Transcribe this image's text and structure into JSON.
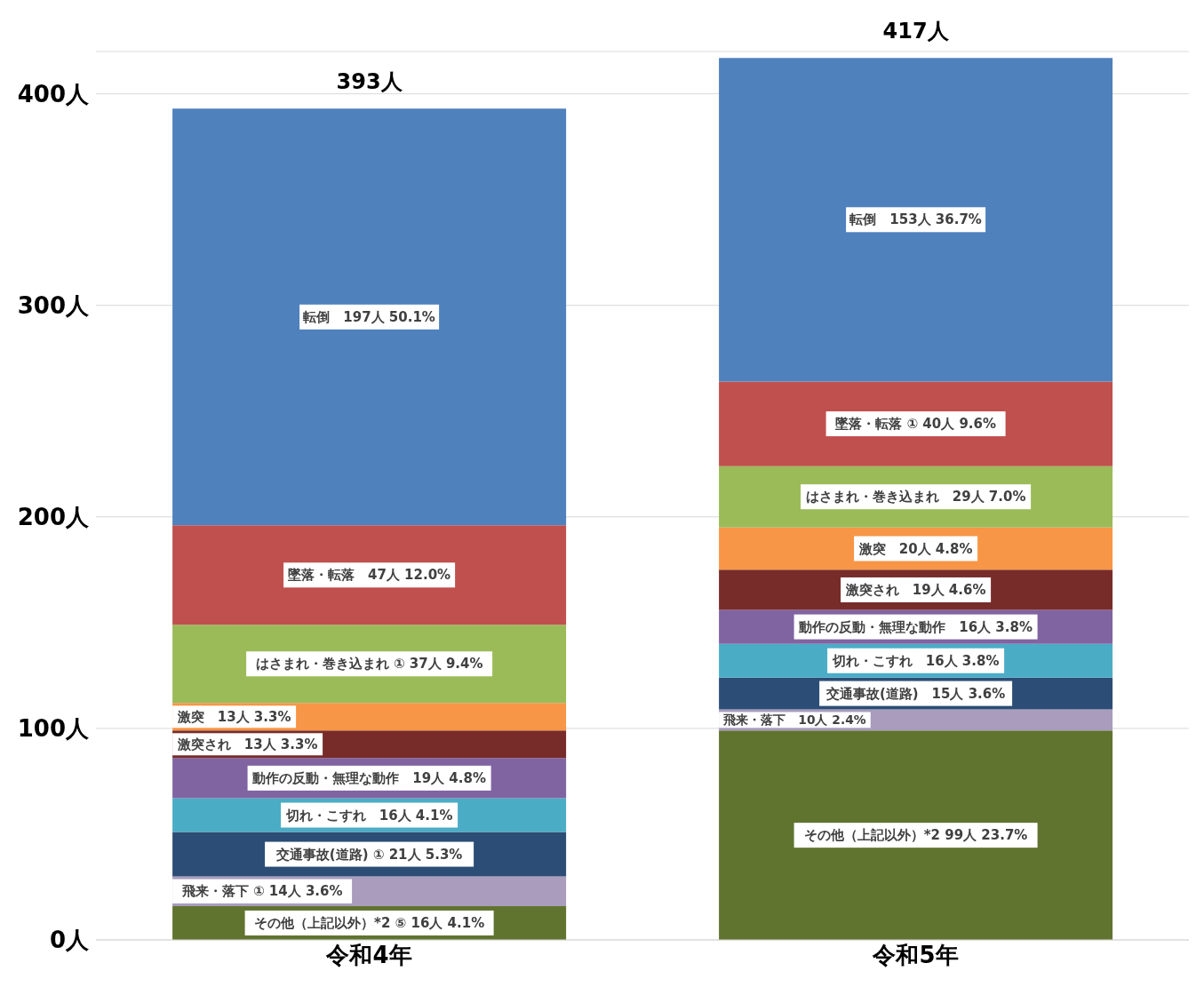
{
  "chart_data": {
    "type": "bar",
    "stacked": true,
    "categories": [
      "令和4年",
      "令和5年"
    ],
    "ylim": [
      0,
      420
    ],
    "yticks": [
      {
        "value": 0,
        "label": "0人"
      },
      {
        "value": 100,
        "label": "100人"
      },
      {
        "value": 200,
        "label": "200人"
      },
      {
        "value": 300,
        "label": "300人"
      },
      {
        "value": 400,
        "label": "400人"
      }
    ],
    "grid": "y",
    "totals": [
      "393人",
      "417人"
    ],
    "series": [
      {
        "color": "#607430",
        "values": [
          16,
          99
        ],
        "value_labels": [
          "その他（上記以外）*2 ⑤ 16人 4.1%",
          "その他（上記以外）*2  99人 23.7%"
        ]
      },
      {
        "color": "#a99cbd",
        "values": [
          14,
          10
        ],
        "value_labels": [
          "飛来・落下 ① 14人 3.6%",
          "飛来・落下　10人 2.4%"
        ]
      },
      {
        "color": "#2c4d75",
        "values": [
          21,
          15
        ],
        "value_labels": [
          "交通事故(道路) ① 21人 5.3%",
          "交通事故(道路)　15人 3.6%"
        ]
      },
      {
        "color": "#4bacc6",
        "values": [
          16,
          16
        ],
        "value_labels": [
          "切れ・こすれ　16人 4.1%",
          "切れ・こすれ　16人 3.8%"
        ]
      },
      {
        "color": "#8064a2",
        "values": [
          19,
          16
        ],
        "value_labels": [
          "動作の反動・無理な動作　19人 4.8%",
          "動作の反動・無理な動作　16人 3.8%"
        ]
      },
      {
        "color": "#772c2a",
        "values": [
          13,
          19
        ],
        "value_labels": [
          "激突され　13人 3.3%",
          "激突され　19人 4.6%"
        ]
      },
      {
        "color": "#f79646",
        "values": [
          13,
          20
        ],
        "value_labels": [
          "激突　13人 3.3%",
          "激突　20人 4.8%"
        ]
      },
      {
        "color": "#9bbb59",
        "values": [
          37,
          29
        ],
        "value_labels": [
          "はさまれ・巻き込まれ ① 37人 9.4%",
          "はさまれ・巻き込まれ　29人 7.0%"
        ]
      },
      {
        "color": "#c0504d",
        "values": [
          47,
          40
        ],
        "value_labels": [
          "墜落・転落　47人 12.0%",
          "墜落・転落 ① 40人 9.6%"
        ]
      },
      {
        "color": "#4f81bd",
        "values": [
          197,
          153
        ],
        "value_labels": [
          "転倒　197人 50.1%",
          "転倒　153人 36.7%"
        ]
      }
    ]
  }
}
